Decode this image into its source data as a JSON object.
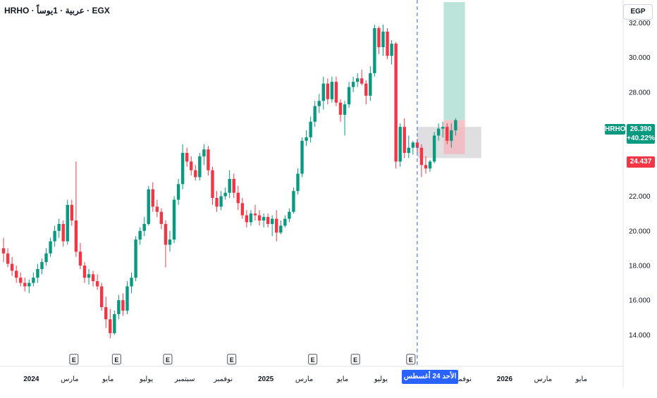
{
  "header": {
    "title": "HRHO · عربية · 1يوساً · EGX",
    "currency": "EGP"
  },
  "price_tags": {
    "ticker": "HRHO",
    "last": "26.390",
    "change": "+40.22%",
    "stop": "24.437"
  },
  "crosshair": {
    "date_label": "الأحد 24 أغسطس '25"
  },
  "colors": {
    "up": "#089981",
    "down": "#f23645",
    "crosshair": "#2962ff",
    "profit_zone": "#b2dfd4",
    "loss_zone": "#f4b9bf",
    "range_zone": "#d9d9dc"
  },
  "chart_data": {
    "type": "candlestick",
    "ylim": [
      13.0,
      33.2
    ],
    "y_ticks": [
      "14.000",
      "16.000",
      "18.000",
      "20.000",
      "22.000",
      "24.000",
      "26.000",
      "28.000",
      "30.000",
      "32.000"
    ],
    "x_ticks": [
      {
        "label": "2024",
        "t": 7,
        "bold": true
      },
      {
        "label": "مارس",
        "t": 16
      },
      {
        "label": "مايو",
        "t": 25
      },
      {
        "label": "يوليو",
        "t": 34
      },
      {
        "label": "سبتمبر",
        "t": 43
      },
      {
        "label": "نوفمبر",
        "t": 52
      },
      {
        "label": "2025",
        "t": 62,
        "bold": true
      },
      {
        "label": "مارس",
        "t": 71
      },
      {
        "label": "مايو",
        "t": 80
      },
      {
        "label": "يوليو",
        "t": 89
      },
      {
        "label": "نوفمبر",
        "t": 108
      },
      {
        "label": "2026",
        "t": 118,
        "bold": true
      },
      {
        "label": "مارس",
        "t": 127
      },
      {
        "label": "مايو",
        "t": 136
      }
    ],
    "event_markers": [
      {
        "label": "E",
        "t": 17
      },
      {
        "label": "E",
        "t": 27
      },
      {
        "label": "E",
        "t": 39
      },
      {
        "label": "E",
        "t": 54
      },
      {
        "label": "E",
        "t": 73
      },
      {
        "label": "E",
        "t": 83
      },
      {
        "label": "E",
        "t": 96
      }
    ],
    "crosshair_t": 97.5,
    "ohlc": [
      [
        19.0,
        19.6,
        18.2,
        18.7
      ],
      [
        18.7,
        19.0,
        17.9,
        18.1
      ],
      [
        18.1,
        18.5,
        17.4,
        17.7
      ],
      [
        17.7,
        18.0,
        17.0,
        17.3
      ],
      [
        17.3,
        17.6,
        16.8,
        17.0
      ],
      [
        17.0,
        17.3,
        16.5,
        16.8
      ],
      [
        16.8,
        17.2,
        16.4,
        17.0
      ],
      [
        17.0,
        17.6,
        16.8,
        17.3
      ],
      [
        17.3,
        18.1,
        17.0,
        17.8
      ],
      [
        17.8,
        18.4,
        17.5,
        18.2
      ],
      [
        18.2,
        19.0,
        18.0,
        18.7
      ],
      [
        18.7,
        19.6,
        18.5,
        19.4
      ],
      [
        19.4,
        20.3,
        19.1,
        20.0
      ],
      [
        20.0,
        20.7,
        19.6,
        20.4
      ],
      [
        20.4,
        20.6,
        19.1,
        19.4
      ],
      [
        19.4,
        21.8,
        19.2,
        21.5
      ],
      [
        21.5,
        21.8,
        20.3,
        20.6
      ],
      [
        20.6,
        24.0,
        18.5,
        18.8
      ],
      [
        18.8,
        19.3,
        17.8,
        18.0
      ],
      [
        18.0,
        18.2,
        17.0,
        17.3
      ],
      [
        17.3,
        17.8,
        16.9,
        17.5
      ],
      [
        17.5,
        17.7,
        16.8,
        17.1
      ],
      [
        17.1,
        17.5,
        16.6,
        16.8
      ],
      [
        16.8,
        17.0,
        15.4,
        15.6
      ],
      [
        15.6,
        16.2,
        14.4,
        14.9
      ],
      [
        14.9,
        15.5,
        13.8,
        14.1
      ],
      [
        14.1,
        15.4,
        14.0,
        15.2
      ],
      [
        15.2,
        16.3,
        14.9,
        16.0
      ],
      [
        16.0,
        16.4,
        15.1,
        15.4
      ],
      [
        15.4,
        17.1,
        15.2,
        16.8
      ],
      [
        16.8,
        17.6,
        16.4,
        17.3
      ],
      [
        17.3,
        19.7,
        17.1,
        19.5
      ],
      [
        19.5,
        20.2,
        19.2,
        20.0
      ],
      [
        20.0,
        20.8,
        19.7,
        20.4
      ],
      [
        20.4,
        22.6,
        20.3,
        22.4
      ],
      [
        22.4,
        22.8,
        21.1,
        21.4
      ],
      [
        21.4,
        21.8,
        20.8,
        21.1
      ],
      [
        21.1,
        21.3,
        20.1,
        20.4
      ],
      [
        20.4,
        20.6,
        17.9,
        19.2
      ],
      [
        19.2,
        20.0,
        18.8,
        19.5
      ],
      [
        19.5,
        22.0,
        19.3,
        21.8
      ],
      [
        21.8,
        23.0,
        21.5,
        22.7
      ],
      [
        22.7,
        25.0,
        22.4,
        24.5
      ],
      [
        24.5,
        24.8,
        23.7,
        24.0
      ],
      [
        24.0,
        24.3,
        23.2,
        23.5
      ],
      [
        23.5,
        23.8,
        22.9,
        23.1
      ],
      [
        23.1,
        24.5,
        22.9,
        24.3
      ],
      [
        24.3,
        25.0,
        23.8,
        24.7
      ],
      [
        24.7,
        24.9,
        23.2,
        23.5
      ],
      [
        23.5,
        23.7,
        21.5,
        21.9
      ],
      [
        21.9,
        22.3,
        21.1,
        21.4
      ],
      [
        21.4,
        22.3,
        21.2,
        22.0
      ],
      [
        22.0,
        22.5,
        21.8,
        22.2
      ],
      [
        22.2,
        23.5,
        21.9,
        23.0
      ],
      [
        23.0,
        23.3,
        21.9,
        22.2
      ],
      [
        22.2,
        22.6,
        21.2,
        21.6
      ],
      [
        21.6,
        21.9,
        20.7,
        20.9
      ],
      [
        20.9,
        21.2,
        20.2,
        20.5
      ],
      [
        20.5,
        21.2,
        20.3,
        21.0
      ],
      [
        21.0,
        21.5,
        20.6,
        20.9
      ],
      [
        20.9,
        21.2,
        20.3,
        20.6
      ],
      [
        20.6,
        21.0,
        20.2,
        20.8
      ],
      [
        20.8,
        21.0,
        20.2,
        20.4
      ],
      [
        20.4,
        20.9,
        19.7,
        20.7
      ],
      [
        20.7,
        21.2,
        19.4,
        19.9
      ],
      [
        19.9,
        20.6,
        19.8,
        20.3
      ],
      [
        20.3,
        20.9,
        20.2,
        20.7
      ],
      [
        20.7,
        21.3,
        20.5,
        21.1
      ],
      [
        21.1,
        22.5,
        21.0,
        22.3
      ],
      [
        22.3,
        23.6,
        22.1,
        23.3
      ],
      [
        23.3,
        25.4,
        23.1,
        25.2
      ],
      [
        25.2,
        25.8,
        24.9,
        25.4
      ],
      [
        25.4,
        26.6,
        25.1,
        26.3
      ],
      [
        26.3,
        27.5,
        26.0,
        27.2
      ],
      [
        27.2,
        27.9,
        26.8,
        27.5
      ],
      [
        27.5,
        28.9,
        27.0,
        28.5
      ],
      [
        28.5,
        28.8,
        27.3,
        27.6
      ],
      [
        27.6,
        28.9,
        27.4,
        28.6
      ],
      [
        28.6,
        28.9,
        27.2,
        27.4
      ],
      [
        27.4,
        27.6,
        26.3,
        26.7
      ],
      [
        26.7,
        27.5,
        25.5,
        27.3
      ],
      [
        27.3,
        28.6,
        27.1,
        28.3
      ],
      [
        28.3,
        28.9,
        28.0,
        28.6
      ],
      [
        28.6,
        29.1,
        28.3,
        28.8
      ],
      [
        28.8,
        29.3,
        28.4,
        28.5
      ],
      [
        28.5,
        28.7,
        27.3,
        27.8
      ],
      [
        27.8,
        29.5,
        27.5,
        29.1
      ],
      [
        29.1,
        31.9,
        28.9,
        31.7
      ],
      [
        31.7,
        31.8,
        30.2,
        30.6
      ],
      [
        30.6,
        31.9,
        30.1,
        31.5
      ],
      [
        31.5,
        31.7,
        29.9,
        30.1
      ],
      [
        30.1,
        31.0,
        29.6,
        30.8
      ],
      [
        30.8,
        30.9,
        23.6,
        24.0
      ],
      [
        24.0,
        26.2,
        23.7,
        26.0
      ],
      [
        26.0,
        26.5,
        24.2,
        24.5
      ],
      [
        24.5,
        25.5,
        24.2,
        24.8
      ],
      [
        24.8,
        25.2,
        24.4,
        25.1
      ],
      [
        25.1,
        25.3,
        24.5,
        24.8
      ],
      [
        24.8,
        25.0,
        23.1,
        23.8
      ],
      [
        23.8,
        24.3,
        23.3,
        23.6
      ],
      [
        23.6,
        24.1,
        23.4,
        24.0
      ],
      [
        24.0,
        25.7,
        23.9,
        25.5
      ],
      [
        25.5,
        26.2,
        25.2,
        25.9
      ],
      [
        25.9,
        26.3,
        25.4,
        26.0
      ],
      [
        26.0,
        26.2,
        25.0,
        25.2
      ],
      [
        25.2,
        26.2,
        24.8,
        25.8
      ],
      [
        25.8,
        26.5,
        25.5,
        26.39
      ]
    ],
    "zones": {
      "profit": {
        "t0": 103.7,
        "t1": 108.7,
        "y0": 26.39,
        "y1": 33.2
      },
      "loss": {
        "t0": 103.7,
        "t1": 108.7,
        "y0": 24.437,
        "y1": 26.39
      },
      "range": {
        "t0": 97.5,
        "t1": 112.5,
        "y0": 24.2,
        "y1": 26.0
      }
    }
  }
}
